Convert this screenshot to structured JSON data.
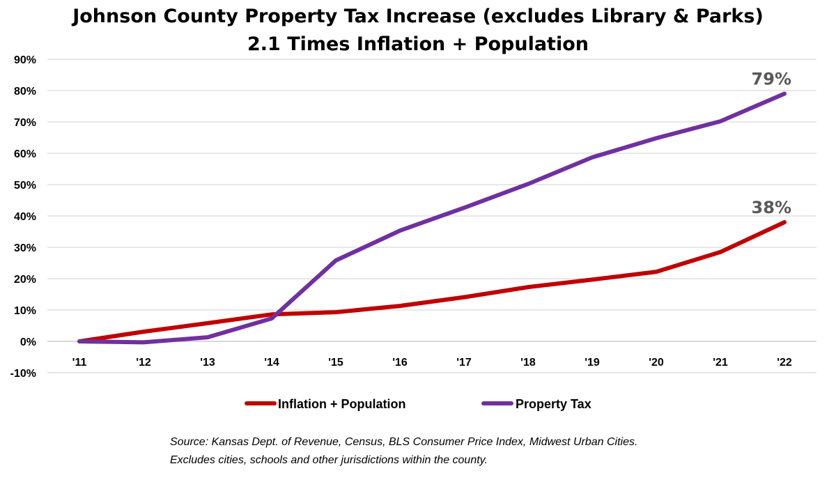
{
  "chart_data": {
    "type": "line",
    "title": "Johnson County Property Tax Increase (excludes Library & Parks)",
    "subtitle": "2.1 Times Inflation + Population",
    "xlabel": "",
    "ylabel": "",
    "categories": [
      "'11",
      "'12",
      "'13",
      "'14",
      "'15",
      "'16",
      "'17",
      "'18",
      "'19",
      "'20",
      "'21",
      "'22"
    ],
    "ylim": [
      -0.1,
      0.9
    ],
    "yticks": [
      -0.1,
      0,
      0.1,
      0.2,
      0.3,
      0.4,
      0.5,
      0.6,
      0.7,
      0.8,
      0.9
    ],
    "ytick_labels": [
      "-10%",
      "0%",
      "10%",
      "20%",
      "30%",
      "40%",
      "50%",
      "60%",
      "70%",
      "80%",
      "90%"
    ],
    "grid": "horizontal",
    "legend_position": "bottom",
    "series": [
      {
        "name": "Inflation + Population",
        "color": "#C00000",
        "values": [
          0.0,
          0.031,
          0.058,
          0.086,
          0.093,
          0.113,
          0.141,
          0.173,
          0.197,
          0.222,
          0.285,
          0.38
        ],
        "end_label": "38%"
      },
      {
        "name": "Property Tax",
        "color": "#7030A0",
        "values": [
          0.0,
          -0.003,
          0.013,
          0.073,
          0.258,
          0.353,
          0.426,
          0.502,
          0.587,
          0.648,
          0.702,
          0.79
        ],
        "end_label": "79%"
      }
    ]
  },
  "source_note": {
    "line1": "Source: Kansas Dept. of Revenue, Census, BLS Consumer Price Index, Midwest Urban Cities.",
    "line2": "Excludes cities, schools and other jurisdictions within the county."
  }
}
